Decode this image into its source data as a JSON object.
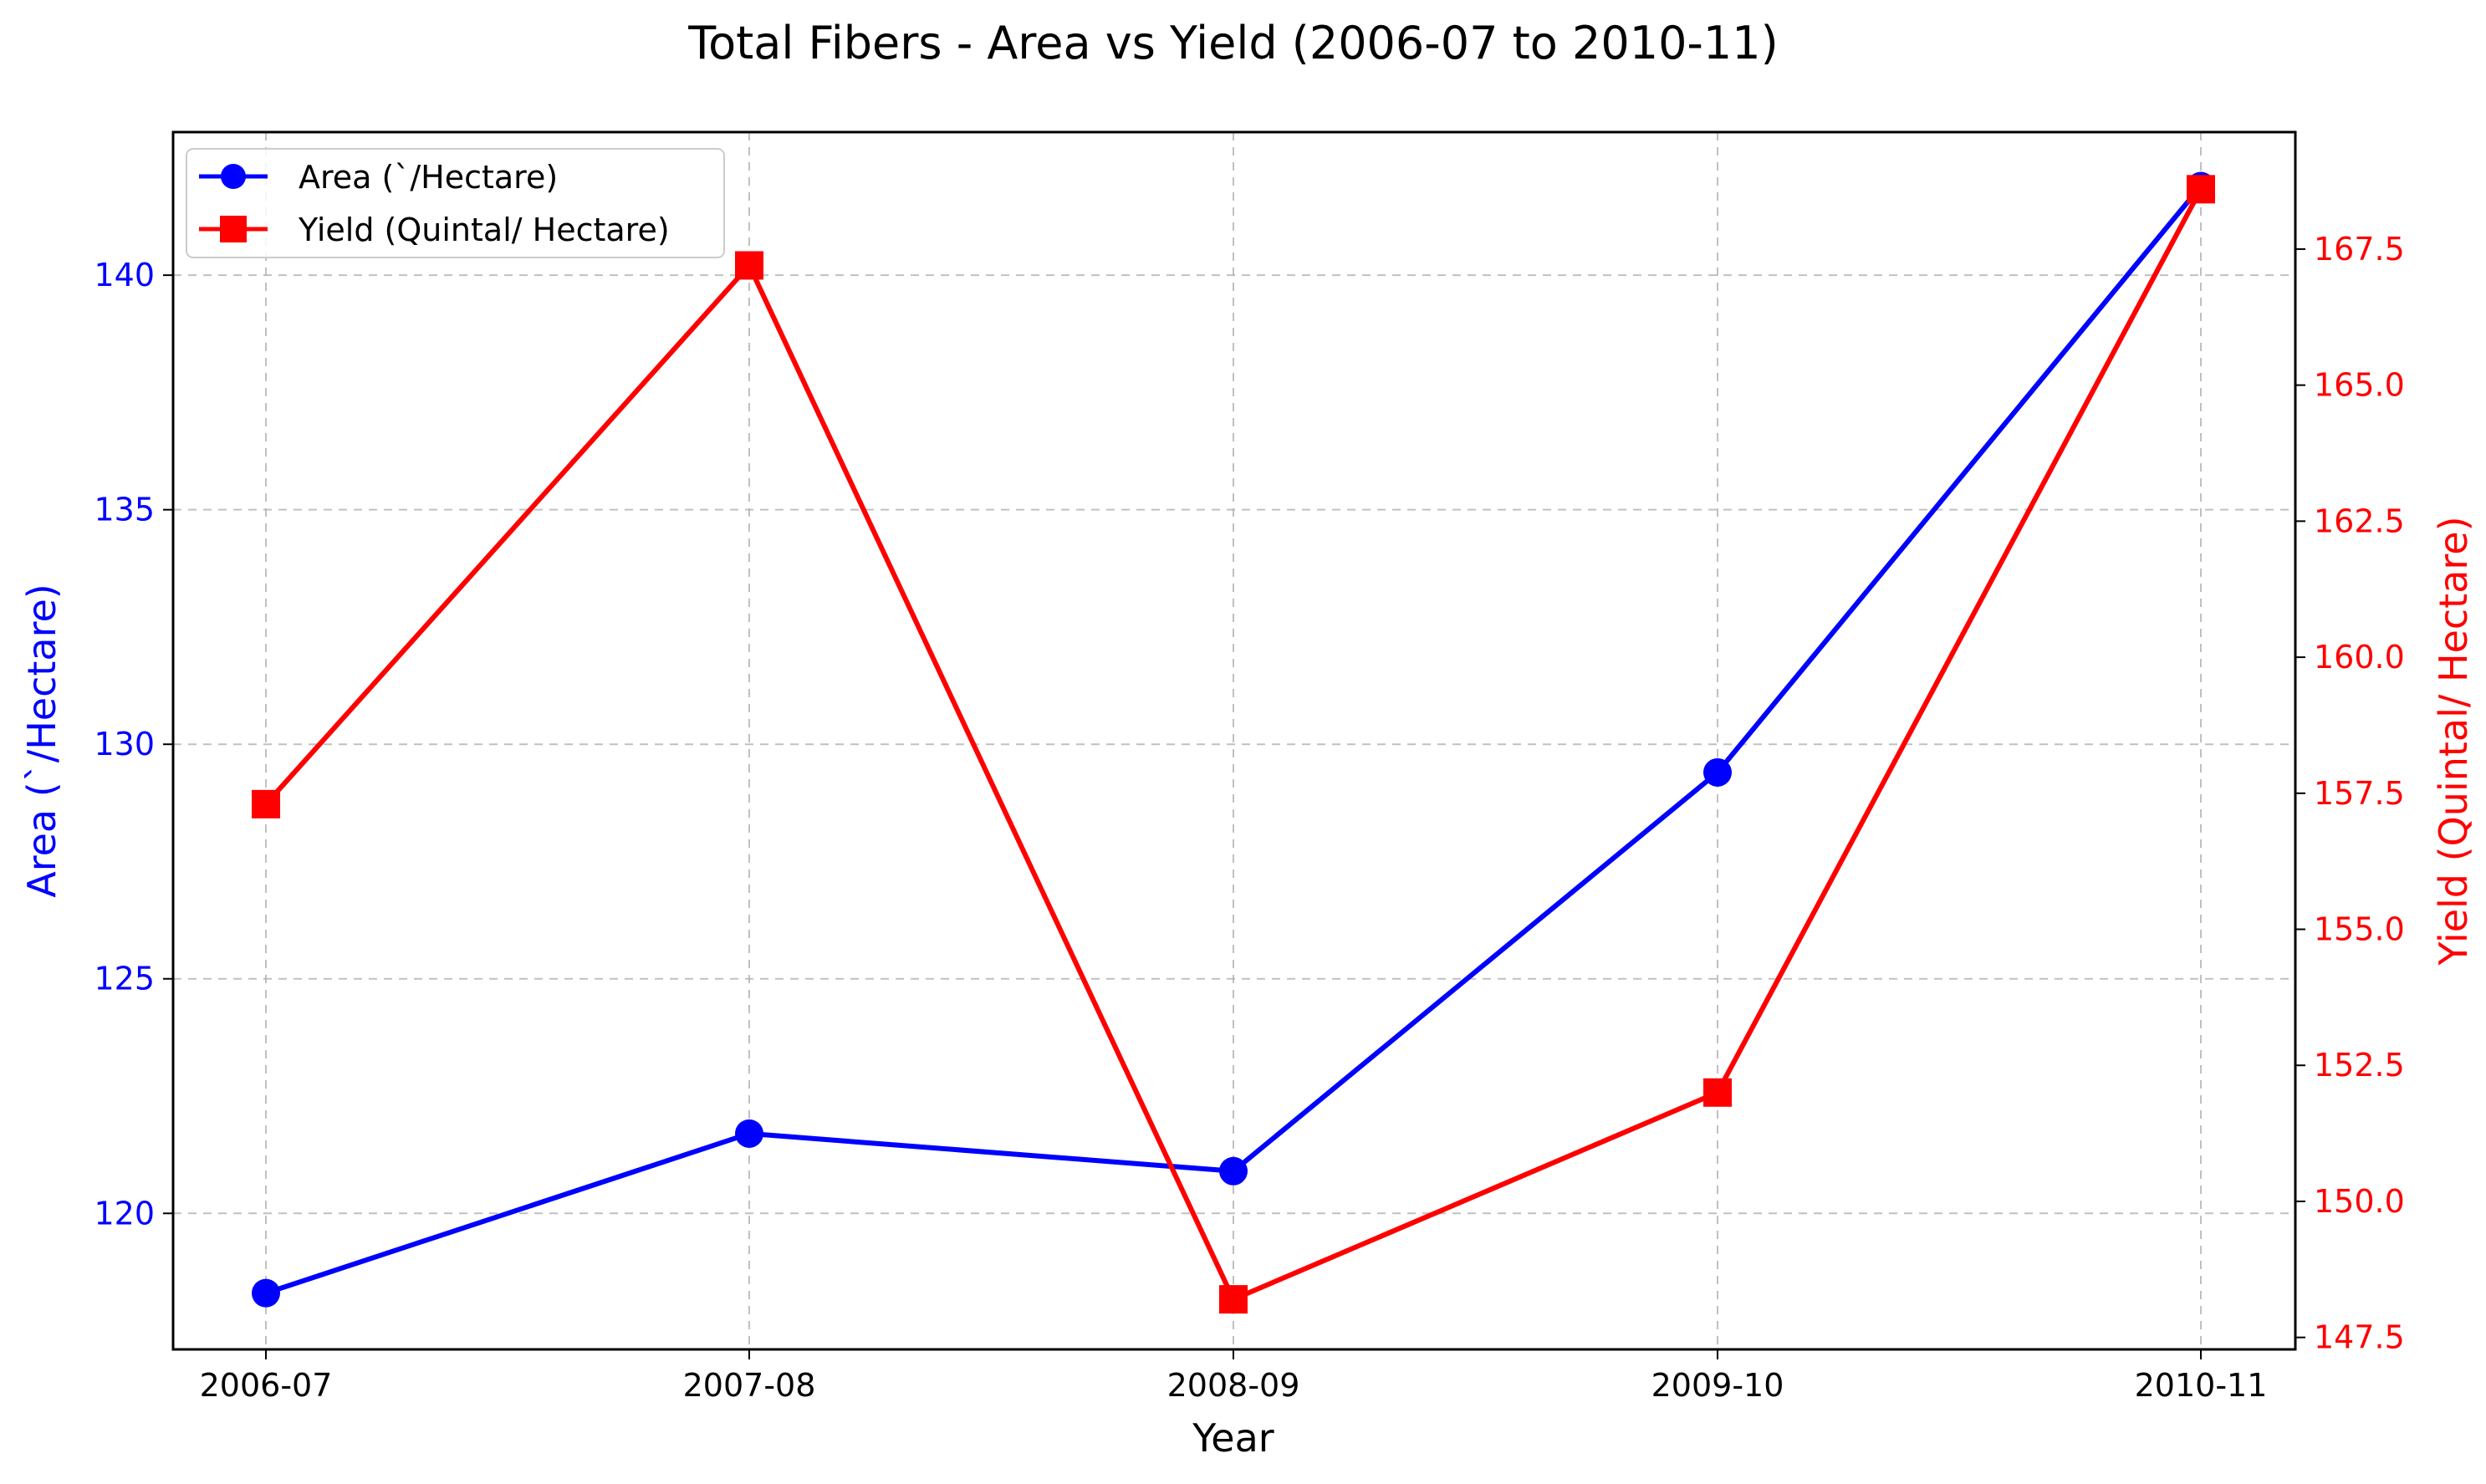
{
  "chart_data": {
    "type": "line",
    "title": "Total Fibers - Area vs Yield (2006-07 to 2010-11)",
    "xlabel": "Year",
    "categories": [
      "2006-07",
      "2007-08",
      "2008-09",
      "2009-10",
      "2010-11"
    ],
    "y_left": {
      "label": "Area (`/Hectare)",
      "ticks": [
        "120",
        "125",
        "130",
        "135",
        "140"
      ],
      "ylim": [
        117.1,
        143.05
      ],
      "color": "#0000ff"
    },
    "y_right": {
      "label": "Yield (Quintal/ Hectare)",
      "ticks": [
        "147.5",
        "150.0",
        "152.5",
        "155.0",
        "157.5",
        "160.0",
        "162.5",
        "165.0",
        "167.5"
      ],
      "ylim": [
        147.28,
        169.65
      ],
      "color": "#ff0000"
    },
    "series": [
      {
        "name": "Area (`/Hectare)",
        "axis": "left",
        "color": "#0000ff",
        "marker": "circle",
        "values": [
          118.3,
          121.7,
          120.9,
          129.4,
          141.9
        ]
      },
      {
        "name": "Yield (Quintal/ Hectare)",
        "axis": "right",
        "color": "#ff0000",
        "marker": "square",
        "values": [
          157.3,
          167.2,
          148.2,
          152.0,
          168.6
        ]
      }
    ],
    "grid": true,
    "legend": "top-left"
  }
}
